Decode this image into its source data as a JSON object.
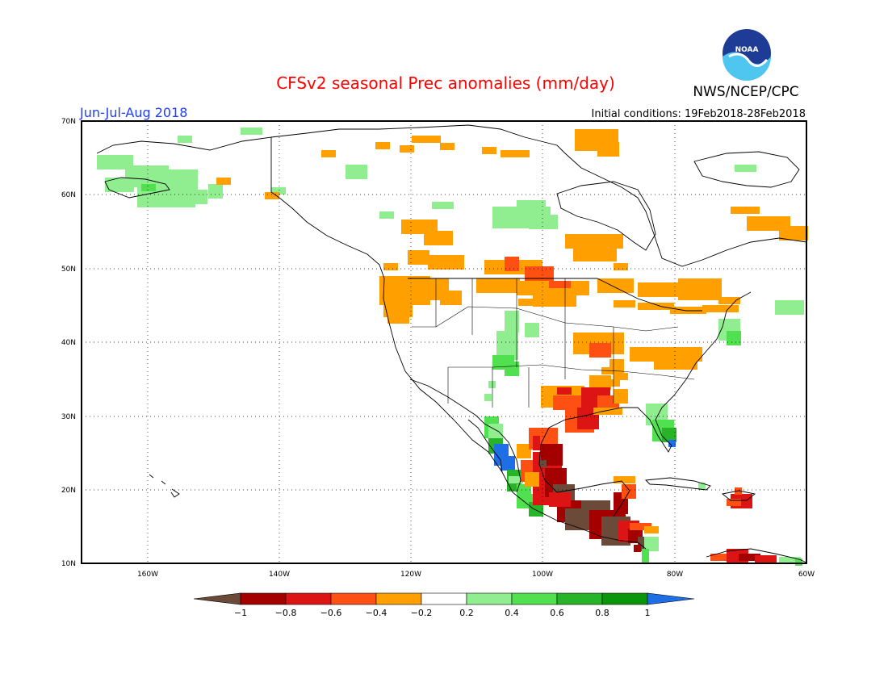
{
  "header": {
    "title": "CFSv2 seasonal Prec anomalies (mm/day)",
    "season": "Jun-Jul-Aug 2018",
    "initial_conditions": "Initial conditions: 19Feb2018-28Feb2018",
    "agency": "NWS/NCEP/CPC",
    "logo_text": "NOAA"
  },
  "map": {
    "lat_labels": [
      "70N",
      "60N",
      "50N",
      "40N",
      "30N",
      "20N",
      "10N"
    ],
    "lon_labels": [
      "160W",
      "140W",
      "120W",
      "100W",
      "80W",
      "60W"
    ],
    "lon_range": [
      -170,
      -60
    ],
    "lat_range": [
      10,
      70
    ]
  },
  "colorbar": {
    "tick_labels": [
      "-1",
      "-0.8",
      "-0.6",
      "-0.4",
      "-0.2",
      "0.2",
      "0.4",
      "0.6",
      "0.8",
      "1"
    ],
    "colors": [
      "#6b4a3a",
      "#a50000",
      "#dc1414",
      "#ff5014",
      "#ffa000",
      "#ffffff",
      "#90ee90",
      "#50e050",
      "#28b428",
      "#0a960a",
      "#1e6ee6"
    ]
  }
}
